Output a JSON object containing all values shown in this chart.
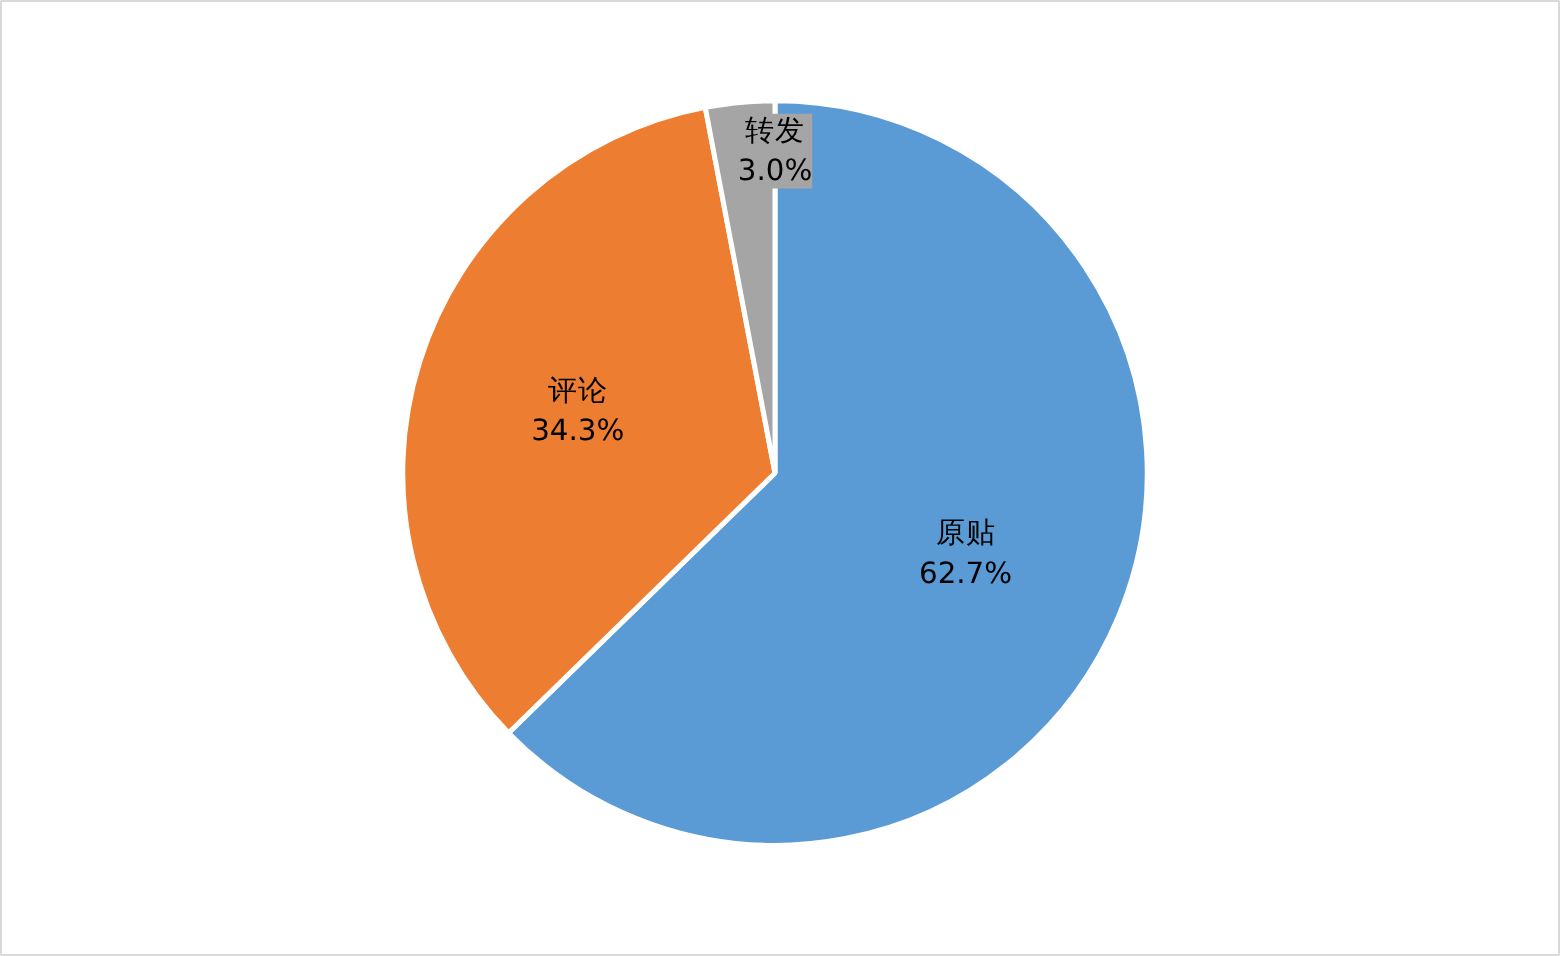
{
  "chart_data": {
    "type": "pie",
    "categories": [
      "原贴",
      "评论",
      "转发"
    ],
    "values": [
      62.7,
      34.3,
      3.0
    ],
    "colors": [
      "#5b9bd5",
      "#ed7d31",
      "#a5a5a5"
    ],
    "value_labels": [
      "62.7%",
      "34.3%",
      "3.0%"
    ]
  }
}
